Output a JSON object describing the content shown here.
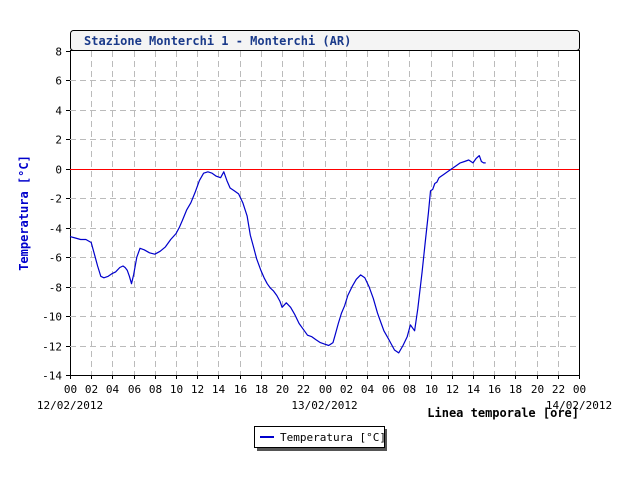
{
  "chart_data": {
    "type": "line",
    "title": "Stazione Monterchi 1 - Monterchi (AR)",
    "ylabel": "Temperatura [°C]",
    "xlabel": "Linea temporale [ore]",
    "ylim": [
      -14,
      8
    ],
    "yticks": [
      8,
      6,
      4,
      2,
      0,
      -2,
      -4,
      -6,
      -8,
      -10,
      -12,
      -14
    ],
    "xlim_hours": [
      0,
      48
    ],
    "xticks": [
      "00",
      "02",
      "04",
      "06",
      "08",
      "10",
      "12",
      "14",
      "16",
      "18",
      "20",
      "22",
      "00",
      "02",
      "04",
      "06",
      "08",
      "10",
      "12",
      "14",
      "16",
      "18",
      "20",
      "22",
      "00"
    ],
    "date_labels": [
      "12/02/2012",
      "13/02/2012",
      "14/02/2012"
    ],
    "grid": true,
    "reference_line": {
      "y": 0,
      "color": "#ff0000"
    },
    "legend_position": "bottom-center",
    "series": [
      {
        "name": "Temperatura [°C]",
        "color": "#0000cc",
        "x": [
          0,
          0.5,
          1,
          1.5,
          2,
          2.3,
          2.6,
          2.9,
          3.2,
          3.6,
          4,
          4.3,
          4.7,
          5,
          5.2,
          5.4,
          5.6,
          5.8,
          6,
          6.3,
          6.6,
          7,
          7.5,
          8,
          8.5,
          9,
          9.5,
          10,
          10.3,
          10.6,
          11,
          11.4,
          11.8,
          12.2,
          12.6,
          13,
          13.4,
          13.8,
          14.2,
          14.5,
          14.8,
          15.1,
          15.5,
          15.9,
          16.3,
          16.7,
          17,
          17.3,
          17.6,
          18,
          18.3,
          18.6,
          18.9,
          19.2,
          19.5,
          19.8,
          20,
          20.4,
          20.8,
          21.2,
          21.6,
          22,
          22.4,
          22.8,
          23.2,
          23.6,
          24,
          24.4,
          24.8,
          25,
          25.3,
          25.6,
          25.9,
          26.2,
          26.6,
          27,
          27.4,
          27.8,
          28.2,
          28.6,
          29,
          29.3,
          29.6,
          30,
          30.3,
          30.6,
          31,
          31.4,
          31.8,
          32.1,
          32.5,
          32.8,
          33.2,
          33.5,
          33.8,
          34,
          34.2,
          34.4,
          34.6,
          34.8,
          35,
          35.2,
          35.4,
          35.6,
          36,
          36.4,
          36.8,
          37.2,
          37.6,
          38,
          38.3,
          38.6,
          38.8,
          39,
          39.2
        ],
        "y": [
          -4.6,
          -4.7,
          -4.8,
          -4.8,
          -5.0,
          -5.8,
          -6.6,
          -7.3,
          -7.4,
          -7.3,
          -7.1,
          -7.0,
          -6.7,
          -6.6,
          -6.7,
          -6.9,
          -7.3,
          -7.8,
          -7.2,
          -6.0,
          -5.4,
          -5.5,
          -5.7,
          -5.8,
          -5.6,
          -5.3,
          -4.8,
          -4.4,
          -4.0,
          -3.5,
          -2.8,
          -2.3,
          -1.6,
          -0.8,
          -0.3,
          -0.2,
          -0.3,
          -0.5,
          -0.6,
          -0.2,
          -0.8,
          -1.3,
          -1.5,
          -1.7,
          -2.3,
          -3.2,
          -4.5,
          -5.3,
          -6.1,
          -6.9,
          -7.4,
          -7.8,
          -8.1,
          -8.3,
          -8.6,
          -9.0,
          -9.4,
          -9.1,
          -9.4,
          -9.9,
          -10.5,
          -10.9,
          -11.3,
          -11.4,
          -11.6,
          -11.8,
          -11.9,
          -12.0,
          -11.8,
          -11.3,
          -10.5,
          -9.8,
          -9.3,
          -8.6,
          -8.0,
          -7.5,
          -7.2,
          -7.4,
          -8.0,
          -8.8,
          -9.8,
          -10.4,
          -11.0,
          -11.5,
          -11.9,
          -12.3,
          -12.5,
          -12.0,
          -11.4,
          -10.6,
          -11.0,
          -9.5,
          -7.0,
          -5.0,
          -3.0,
          -1.5,
          -1.4,
          -1.0,
          -0.9,
          -0.6,
          -0.5,
          -0.4,
          -0.3,
          -0.2,
          0.0,
          0.2,
          0.4,
          0.5,
          0.6,
          0.4,
          0.7,
          0.9,
          0.5,
          0.4,
          0.4
        ]
      }
    ]
  }
}
